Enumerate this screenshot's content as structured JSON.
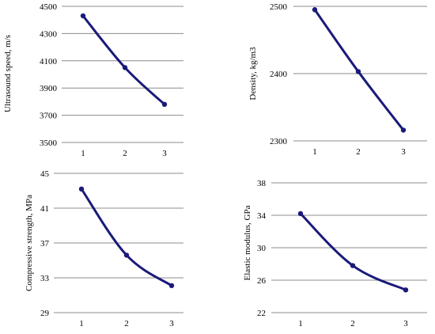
{
  "charts": [
    {
      "ylabel": "Ultrasound speed, m/s",
      "ylabel_color": "#000000"
    },
    {
      "ylabel": "Density, kg/m3",
      "ylabel_color": "#000000"
    },
    {
      "ylabel": "Compressive strength, MPa",
      "ylabel_color": "#000000"
    },
    {
      "ylabel": "Elastic modulus, GPa",
      "ylabel_color": "#000000"
    }
  ],
  "chart_data": [
    {
      "type": "line",
      "categories": [
        "1",
        "2",
        "3"
      ],
      "series": [
        {
          "values": [
            4430,
            4050,
            3780
          ]
        }
      ],
      "title": "",
      "xlabel": "",
      "ylabel": "Ultrasound speed, m/s",
      "ylim": [
        3500,
        4500
      ],
      "yticks": [
        3500,
        3700,
        3900,
        4100,
        4300,
        4500
      ],
      "grid": true,
      "line_color": "#1a1a7a"
    },
    {
      "type": "line",
      "categories": [
        "1",
        "2",
        "3"
      ],
      "series": [
        {
          "values": [
            2495,
            2403,
            2316
          ]
        }
      ],
      "title": "",
      "xlabel": "",
      "ylabel": "Density, kg/m3",
      "ylim": [
        2300,
        2500
      ],
      "yticks": [
        2300,
        2400,
        2500
      ],
      "grid": true,
      "line_color": "#1a1a7a"
    },
    {
      "type": "line",
      "categories": [
        "1",
        "2",
        "3"
      ],
      "series": [
        {
          "values": [
            43.2,
            35.6,
            32.1
          ]
        }
      ],
      "title": "",
      "xlabel": "",
      "ylabel": "Compressive strength, MPa",
      "ylim": [
        29,
        45
      ],
      "yticks": [
        29,
        33,
        37,
        41,
        45
      ],
      "grid": true,
      "line_color": "#1a1a7a"
    },
    {
      "type": "line",
      "categories": [
        "1",
        "2",
        "3"
      ],
      "series": [
        {
          "values": [
            34.2,
            27.8,
            24.8
          ]
        }
      ],
      "title": "",
      "xlabel": "",
      "ylabel": "Elastic modulus, GPa",
      "ylim": [
        22,
        38
      ],
      "yticks": [
        22,
        26,
        30,
        34,
        38
      ],
      "grid": true,
      "line_color": "#1a1a7a"
    }
  ]
}
